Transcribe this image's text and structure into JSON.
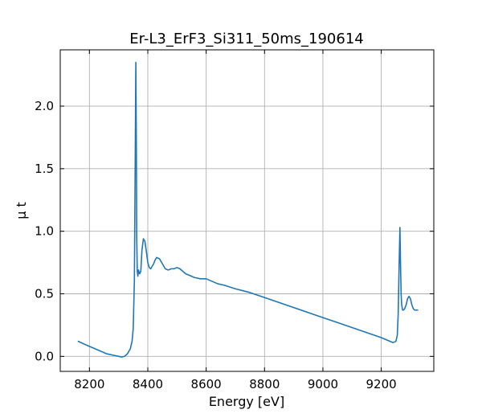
{
  "chart_data": {
    "type": "line",
    "title": "Er-L3_ErF3_Si311_50ms_190614",
    "xlabel": "Energy [eV]",
    "ylabel": "μ t",
    "xlim": [
      8100,
      9380
    ],
    "ylim": [
      -0.12,
      2.45
    ],
    "xticks": [
      8200,
      8400,
      8600,
      8800,
      9000,
      9200
    ],
    "yticks": [
      0.0,
      0.5,
      1.0,
      1.5,
      2.0
    ],
    "xtick_labels": [
      "8200",
      "8400",
      "8600",
      "8800",
      "9000",
      "9200"
    ],
    "ytick_labels": [
      "0.0",
      "0.5",
      "1.0",
      "1.5",
      "2.0"
    ],
    "grid": true,
    "tick_direction": "in",
    "series": [
      {
        "color": "#1f77b4",
        "x": [
          8162,
          8180,
          8200,
          8220,
          8240,
          8260,
          8280,
          8300,
          8310,
          8320,
          8330,
          8340,
          8346,
          8350,
          8354,
          8357,
          8359,
          8361,
          8362,
          8364,
          8366,
          8368,
          8372,
          8376,
          8380,
          8385,
          8390,
          8395,
          8400,
          8405,
          8410,
          8415,
          8420,
          8425,
          8430,
          8440,
          8450,
          8460,
          8470,
          8480,
          8490,
          8500,
          8510,
          8520,
          8530,
          8540,
          8560,
          8580,
          8600,
          8620,
          8640,
          8660,
          8700,
          8750,
          8800,
          8850,
          8900,
          8950,
          9000,
          9050,
          9100,
          9150,
          9200,
          9230,
          9240,
          9250,
          9255,
          9258,
          9261,
          9264,
          9266,
          9268,
          9270,
          9273,
          9276,
          9280,
          9285,
          9290,
          9295,
          9300,
          9305,
          9310,
          9315,
          9320,
          9325
        ],
        "y": [
          0.12,
          0.1,
          0.08,
          0.06,
          0.04,
          0.02,
          0.01,
          0.0,
          -0.005,
          0.0,
          0.02,
          0.06,
          0.12,
          0.22,
          0.6,
          1.6,
          2.35,
          1.6,
          0.95,
          0.68,
          0.64,
          0.69,
          0.66,
          0.68,
          0.85,
          0.94,
          0.92,
          0.84,
          0.75,
          0.71,
          0.7,
          0.72,
          0.74,
          0.77,
          0.79,
          0.78,
          0.74,
          0.7,
          0.69,
          0.7,
          0.7,
          0.71,
          0.7,
          0.68,
          0.66,
          0.65,
          0.63,
          0.62,
          0.62,
          0.6,
          0.58,
          0.57,
          0.54,
          0.51,
          0.47,
          0.43,
          0.39,
          0.35,
          0.31,
          0.27,
          0.23,
          0.19,
          0.15,
          0.12,
          0.11,
          0.12,
          0.17,
          0.34,
          0.71,
          1.03,
          0.74,
          0.5,
          0.41,
          0.37,
          0.37,
          0.38,
          0.41,
          0.46,
          0.48,
          0.46,
          0.41,
          0.38,
          0.37,
          0.37,
          0.37
        ]
      }
    ]
  }
}
